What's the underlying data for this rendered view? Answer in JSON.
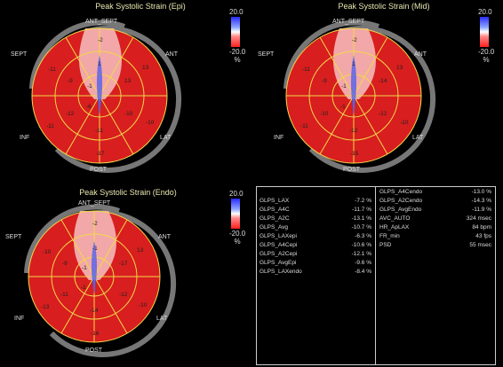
{
  "panels": [
    {
      "title": "Peak Systolic Strain (Epi)",
      "scale_top": "20.0",
      "scale_bottom": "-20.0",
      "scale_unit": "%",
      "labels": {
        "ant_sept": "ANT_SEPT",
        "sept": "SEPT",
        "ant": "ANT",
        "inf": "INF",
        "lat": "LAT",
        "post": "POST"
      },
      "segments": {
        "outer": [
          "-2",
          "13",
          "-10",
          "-17",
          "-11"
        ],
        "outer_extra": [
          "-11",
          "-11",
          "-14"
        ],
        "mid": [
          "-9",
          "-1",
          "-8",
          "-13",
          "13",
          "-11",
          "-12",
          "-10",
          "-12",
          "-6"
        ],
        "apex": [
          "1",
          "-6",
          "-1",
          "-1",
          "-1"
        ]
      }
    },
    {
      "title": "Peak Systolic Strain (Mid)",
      "scale_top": "20.0",
      "scale_bottom": "-20.0",
      "scale_unit": "%",
      "labels": {
        "ant_sept": "ANT_SEPT",
        "sept": "SEPT",
        "ant": "ANT",
        "inf": "INF",
        "lat": "LAT",
        "post": "POST"
      },
      "segments": {
        "outer": [
          "-2",
          "13",
          "-10",
          "-15",
          "-11"
        ],
        "outer_extra": [
          "-11",
          "-11",
          "-14"
        ],
        "mid": [
          "-9",
          "1",
          "-8",
          "-14",
          "-12",
          "-10",
          "-12",
          "-16"
        ],
        "apex": [
          "1",
          "-1",
          "-1",
          "-1",
          "-1"
        ]
      }
    },
    {
      "title": "Peak Systolic Strain (Endo)",
      "scale_top": "20.0",
      "scale_bottom": "-20.0",
      "scale_unit": "%",
      "labels": {
        "ant_sept": "ANT_SEPT",
        "sept": "SEPT",
        "ant": "ANT",
        "inf": "INF",
        "lat": "LAT",
        "post": "POST"
      },
      "segments": {
        "outer": [
          "-2",
          "13",
          "-10",
          "-16",
          "-13"
        ],
        "outer_extra": [
          "-10",
          "-18",
          "-18"
        ],
        "mid": [
          "-9",
          "-2",
          "-8",
          "-17",
          "-14",
          "-11",
          "-12",
          "-14"
        ],
        "apex": [
          "-1",
          "-1",
          "-1",
          "-1",
          "-1"
        ]
      }
    }
  ],
  "table": {
    "left": [
      {
        "k": "GLPS_LAX",
        "v": "-7.2 %"
      },
      {
        "k": "GLPS_A4C",
        "v": "-11.7 %"
      },
      {
        "k": "GLPS_A2C",
        "v": "-13.1 %"
      },
      {
        "k": "GLPS_Avg",
        "v": "-10.7 %"
      },
      {
        "k": "GLPS_LAXepi",
        "v": "-6.3 %"
      },
      {
        "k": "GLPS_A4Cepi",
        "v": "-10.6 %"
      },
      {
        "k": "GLPS_A2Cepi",
        "v": "-12.1 %"
      },
      {
        "k": "GLPS_AvgEpi",
        "v": "-9.6 %"
      },
      {
        "k": "GLPS_LAXendo",
        "v": "-8.4 %"
      }
    ],
    "right": [
      {
        "k": "GLPS_A4Cendo",
        "v": "-13.0 %"
      },
      {
        "k": "GLPS_A2Cendo",
        "v": "-14.3 %"
      },
      {
        "k": "GLPS_AvgEndo",
        "v": "-11.9 %"
      },
      {
        "k": "AVC_AUTO",
        "v": "324 msec"
      },
      {
        "k": "HR_ApLAX",
        "v": "84 bpm"
      },
      {
        "k": "FR_min",
        "v": "43 fps"
      },
      {
        "k": "PSD",
        "v": "55 msec"
      }
    ]
  },
  "colors": {
    "red": "#d81e1e",
    "light_red": "#f2a8a8",
    "blue": "#3a52ff",
    "yellow_grid": "#f2d84a",
    "title": "#e8e6b0"
  }
}
